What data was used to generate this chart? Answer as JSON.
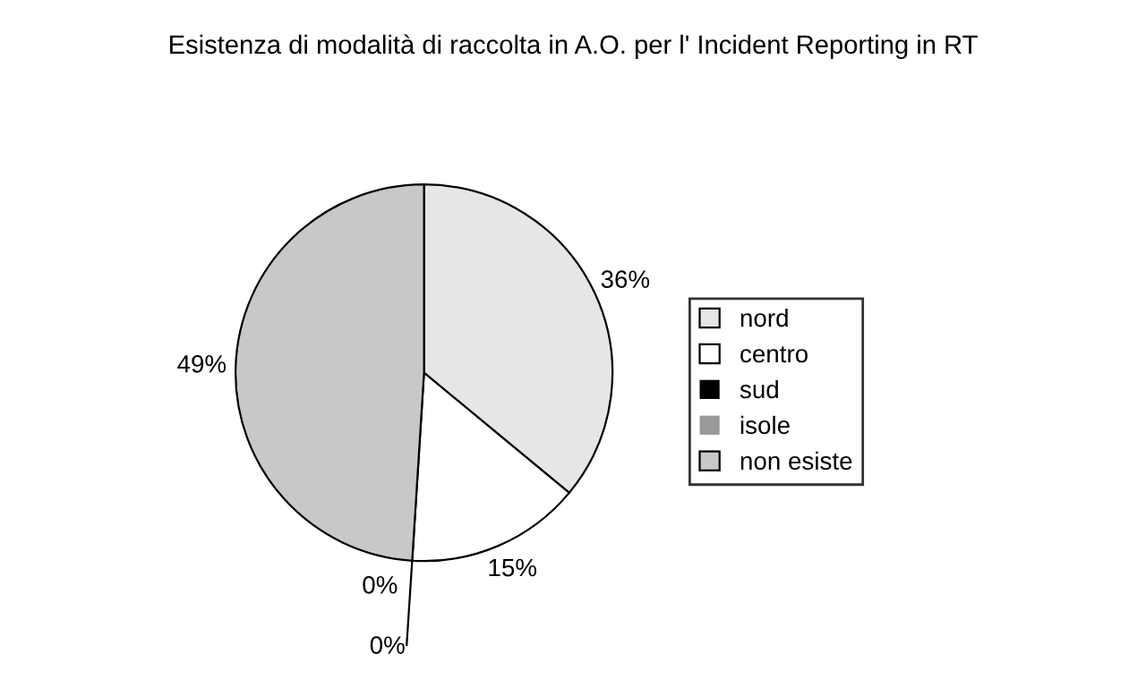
{
  "chart_data": {
    "type": "pie",
    "title": "Esistenza di modalità di raccolta in A.O. per l' Incident Reporting in RT",
    "categories": [
      "nord",
      "centro",
      "sud",
      "isole",
      "non esiste"
    ],
    "values": [
      36,
      15,
      0,
      0,
      49
    ],
    "colors": [
      "#e6e6e6",
      "#ffffff",
      "#000000",
      "#999999",
      "#c8c8c8"
    ],
    "value_labels": [
      "36%",
      "15%",
      "0%",
      "0%",
      "49%"
    ],
    "legend": "right"
  }
}
